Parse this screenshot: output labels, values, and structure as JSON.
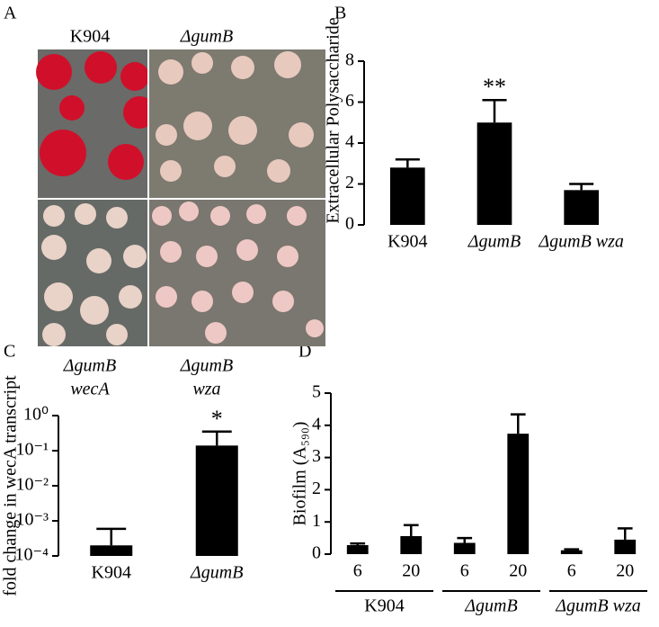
{
  "panel_labels": [
    "A",
    "B",
    "C",
    "D"
  ],
  "photo_panel": {
    "top_labels": [
      "K904",
      "ΔgumB"
    ],
    "bottom_labels": [
      [
        "ΔgumB",
        "wecA"
      ],
      [
        "ΔgumB",
        "wza"
      ]
    ]
  },
  "chart_data": [
    {
      "type": "bar",
      "ylabel": "Extracellular Polysaccharide",
      "categories": [
        "K904",
        "ΔgumB",
        "ΔgumB wza"
      ],
      "values": [
        2.8,
        5.0,
        1.7
      ],
      "errors": [
        0.4,
        1.1,
        0.3
      ],
      "significance": [
        null,
        "**",
        null
      ],
      "color": "#000000",
      "ylim": [
        0,
        8
      ],
      "yticks": [
        0,
        2,
        4,
        6,
        8
      ]
    },
    {
      "type": "bar",
      "ylabel": "fold change in wecA transcript",
      "log": true,
      "categories": [
        "K904",
        "ΔgumB"
      ],
      "values": [
        0.0002,
        0.14
      ],
      "errors": [
        0.00039,
        0.21
      ],
      "significance": [
        null,
        "*"
      ],
      "color": "#000000",
      "ylim": [
        0.0001,
        1
      ],
      "yticks": [
        {
          "value": 0.0001,
          "label": "10⁻⁴"
        },
        {
          "value": 0.001,
          "label": "10⁻³"
        },
        {
          "value": 0.01,
          "label": "10⁻²"
        },
        {
          "value": 0.1,
          "label": "10⁻¹"
        },
        {
          "value": 1,
          "label": "10⁰"
        }
      ]
    },
    {
      "type": "bar",
      "ylabel": "Biofilm (A₅₉₀)",
      "categories": [
        "6",
        "20",
        "6",
        "20",
        "6",
        "20"
      ],
      "groups": [
        "K904",
        "ΔgumB",
        "ΔgumB wza"
      ],
      "values": [
        0.28,
        0.56,
        0.35,
        3.74,
        0.12,
        0.45
      ],
      "errors": [
        0.05,
        0.34,
        0.15,
        0.6,
        0.03,
        0.35
      ],
      "color": "#000000",
      "ylim": [
        0,
        5
      ],
      "yticks": [
        0,
        1,
        2,
        3,
        4,
        5
      ]
    }
  ]
}
